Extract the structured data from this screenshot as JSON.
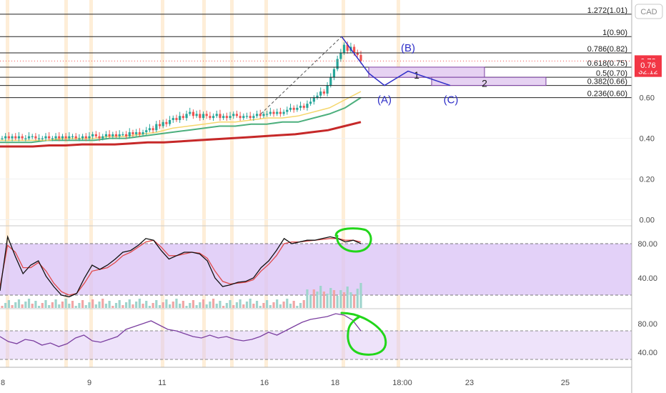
{
  "currency_badge": "CAD",
  "price_axis": {
    "ticks": [
      {
        "value": 0.6,
        "label": "0.60"
      },
      {
        "value": 0.4,
        "label": "0.40"
      },
      {
        "value": 0.2,
        "label": "0.20"
      },
      {
        "value": 0.0,
        "label": "0.00"
      }
    ],
    "badges": [
      {
        "value": 0.78,
        "label": "0.78",
        "color": "#f23645"
      },
      {
        "value": 0.73,
        "label": "32:12",
        "color": "#f23645"
      },
      {
        "value": 0.76,
        "label": "0.76",
        "color": "#f23645"
      }
    ]
  },
  "fib_levels": [
    {
      "value": 1.085,
      "label": ""
    },
    {
      "value": 1.01,
      "label": "1.272(1.01)"
    },
    {
      "value": 0.9,
      "label": "1(0.90)"
    },
    {
      "value": 0.82,
      "label": "0.786(0.82)"
    },
    {
      "value": 0.75,
      "label": "0.618(0.75)"
    },
    {
      "value": 0.7,
      "label": "0.5(0.70)"
    },
    {
      "value": 0.66,
      "label": "0.382(0.66)"
    },
    {
      "value": 0.6,
      "label": "0.236(0.60)"
    }
  ],
  "waves": [
    {
      "label": "(A)",
      "color": "#2e2ec8"
    },
    {
      "label": "(B)",
      "color": "#2e2ec8"
    },
    {
      "label": "(C)",
      "color": "#2e2ec8"
    }
  ],
  "boxes": [
    {
      "label": "1"
    },
    {
      "label": "2"
    }
  ],
  "oscillator1": {
    "ticks": [
      {
        "value": 80,
        "label": "80.00"
      },
      {
        "value": 40,
        "label": "40.00"
      }
    ],
    "band": [
      20,
      80
    ]
  },
  "oscillator2": {
    "ticks": [
      {
        "value": 80,
        "label": "80.00"
      },
      {
        "value": 40,
        "label": "40.00"
      }
    ],
    "band": [
      30,
      70
    ]
  },
  "time_axis": {
    "ticks": [
      "8",
      "9",
      "11",
      "16",
      "18",
      "18:00",
      "23",
      "25"
    ]
  },
  "colors": {
    "up": "#26a69a",
    "down": "#ef5350",
    "ma_fast": "#f5d76e",
    "ma_mid": "#4caf7d",
    "ma_slow": "#c62828",
    "wave": "#2e2ec8",
    "stoch_k": "#111111",
    "stoch_d": "#e04a4a",
    "rsi": "#7b3fa0",
    "band_fill": "#d9c2f5",
    "box_fill": "#e6d2f2",
    "annotation": "#22d61a",
    "session": "#fde7c8"
  },
  "chart_data": {
    "type": "candlestick",
    "symbol_currency": "CAD",
    "last_price": 0.78,
    "price_ylim": [
      -0.03,
      1.08
    ],
    "closes": [
      0.4,
      0.41,
      0.4,
      0.41,
      0.4,
      0.41,
      0.4,
      0.4,
      0.41,
      0.41,
      0.4,
      0.4,
      0.4,
      0.41,
      0.4,
      0.4,
      0.41,
      0.4,
      0.41,
      0.4,
      0.41,
      0.41,
      0.4,
      0.4,
      0.41,
      0.4,
      0.41,
      0.42,
      0.41,
      0.4,
      0.41,
      0.42,
      0.41,
      0.42,
      0.41,
      0.42,
      0.42,
      0.41,
      0.43,
      0.42,
      0.43,
      0.42,
      0.43,
      0.44,
      0.45,
      0.44,
      0.47,
      0.46,
      0.48,
      0.47,
      0.49,
      0.5,
      0.49,
      0.51,
      0.5,
      0.52,
      0.53,
      0.51,
      0.52,
      0.5,
      0.52,
      0.51,
      0.5,
      0.51,
      0.52,
      0.5,
      0.51,
      0.5,
      0.51,
      0.52,
      0.51,
      0.5,
      0.51,
      0.51,
      0.5,
      0.51,
      0.52,
      0.51,
      0.52,
      0.52,
      0.53,
      0.52,
      0.53,
      0.52,
      0.53,
      0.54,
      0.55,
      0.54,
      0.55,
      0.56,
      0.55,
      0.57,
      0.58,
      0.6,
      0.61,
      0.63,
      0.62,
      0.66,
      0.7,
      0.74,
      0.79,
      0.82,
      0.86,
      0.83,
      0.85,
      0.82,
      0.81,
      0.78
    ],
    "ma_fast": [
      0.39,
      0.39,
      0.39,
      0.39,
      0.4,
      0.4,
      0.4,
      0.41,
      0.41,
      0.42,
      0.43,
      0.45,
      0.46,
      0.47,
      0.48,
      0.48,
      0.49,
      0.5,
      0.5,
      0.51,
      0.53,
      0.55,
      0.59,
      0.63
    ],
    "ma_mid": [
      0.38,
      0.38,
      0.38,
      0.39,
      0.39,
      0.39,
      0.39,
      0.4,
      0.4,
      0.41,
      0.42,
      0.43,
      0.44,
      0.45,
      0.46,
      0.46,
      0.47,
      0.47,
      0.48,
      0.48,
      0.5,
      0.52,
      0.55,
      0.6
    ],
    "ma_slow": [
      0.36,
      0.36,
      0.36,
      0.365,
      0.365,
      0.37,
      0.37,
      0.37,
      0.375,
      0.38,
      0.38,
      0.385,
      0.39,
      0.395,
      0.4,
      0.405,
      0.41,
      0.415,
      0.42,
      0.43,
      0.44,
      0.46,
      0.48
    ],
    "fib_levels": [
      1.01,
      0.9,
      0.82,
      0.75,
      0.7,
      0.66,
      0.6
    ],
    "wave_points": [
      [
        0.82,
        "(B)"
      ],
      [
        0.66,
        "(A)"
      ],
      [
        0.66,
        "(C)"
      ]
    ],
    "stoch_k": [
      25,
      88,
      65,
      45,
      55,
      60,
      42,
      30,
      20,
      18,
      22,
      40,
      55,
      50,
      55,
      62,
      70,
      72,
      78,
      86,
      84,
      72,
      62,
      66,
      70,
      70,
      68,
      60,
      40,
      30,
      32,
      35,
      36,
      40,
      52,
      60,
      72,
      86,
      80,
      82,
      84,
      84,
      86,
      88,
      86,
      82,
      84,
      80
    ],
    "stoch_d": [
      30,
      78,
      70,
      52,
      52,
      58,
      48,
      34,
      24,
      20,
      22,
      34,
      48,
      50,
      52,
      58,
      66,
      70,
      76,
      82,
      84,
      76,
      66,
      66,
      68,
      70,
      69,
      63,
      48,
      36,
      33,
      34,
      35,
      38,
      48,
      56,
      66,
      80,
      82,
      82,
      83,
      84,
      85,
      86,
      86,
      84,
      84,
      82
    ],
    "rsi": [
      62,
      55,
      52,
      58,
      56,
      50,
      53,
      48,
      52,
      60,
      64,
      56,
      54,
      58,
      62,
      72,
      76,
      80,
      84,
      78,
      72,
      70,
      66,
      62,
      60,
      64,
      60,
      62,
      58,
      56,
      58,
      62,
      68,
      64,
      70,
      76,
      82,
      86,
      88,
      90,
      94,
      92,
      85,
      70
    ],
    "time_ticks": [
      "8",
      "9",
      "11",
      "16",
      "18",
      "18:00",
      "23",
      "25"
    ],
    "oscillator_ticks": [
      80,
      40
    ],
    "annotations": [
      "green circle on stochastic top",
      "green circle on RSI top"
    ]
  }
}
